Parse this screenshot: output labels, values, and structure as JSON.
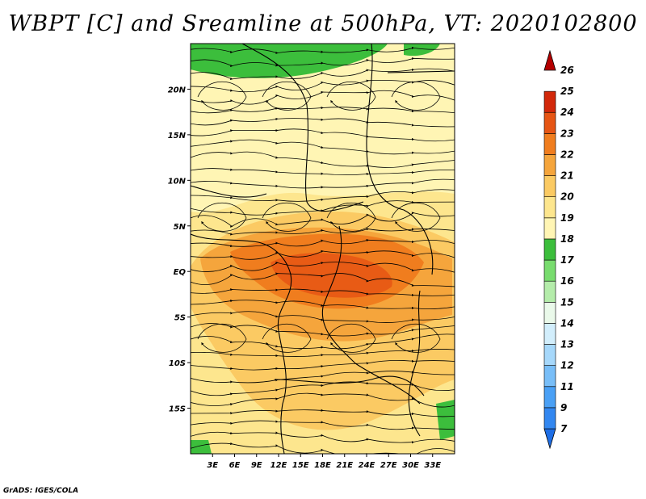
{
  "title": "WBPT [C] and Sreamline at 500hPa, VT: 2020102800",
  "credit": "GrADS: IGES/COLA",
  "map": {
    "lon_range": [
      0,
      36
    ],
    "lat_range": [
      -20,
      25
    ],
    "lon_ticks": [
      "3E",
      "6E",
      "9E",
      "12E",
      "15E",
      "18E",
      "21E",
      "24E",
      "27E",
      "30E",
      "33E"
    ],
    "lon_tick_values": [
      3,
      6,
      9,
      12,
      15,
      18,
      21,
      24,
      27,
      30,
      33
    ],
    "lat_ticks": [
      "20N",
      "15N",
      "10N",
      "5N",
      "EQ",
      "5S",
      "10S",
      "15S"
    ],
    "lat_tick_values": [
      20,
      15,
      10,
      5,
      0,
      -5,
      -10,
      -15
    ],
    "field": "wet-bulb potential temperature",
    "overlay": "streamlines"
  },
  "colorbar": {
    "labels": [
      "7",
      "9",
      "11",
      "12",
      "13",
      "14",
      "15",
      "16",
      "17",
      "18",
      "19",
      "20",
      "21",
      "22",
      "23",
      "24",
      "25",
      "26"
    ],
    "colors": [
      "#1e6ee6",
      "#3287f0",
      "#4aa0f5",
      "#78bef8",
      "#a6d8fb",
      "#d2eefc",
      "#eaf9ea",
      "#b4ecaa",
      "#78dc6e",
      "#3cbe3c",
      "#fff5b4",
      "#fde68e",
      "#fbca63",
      "#f5a53c",
      "#f07d1e",
      "#e65514",
      "#d2280a",
      "#b40000"
    ]
  }
}
